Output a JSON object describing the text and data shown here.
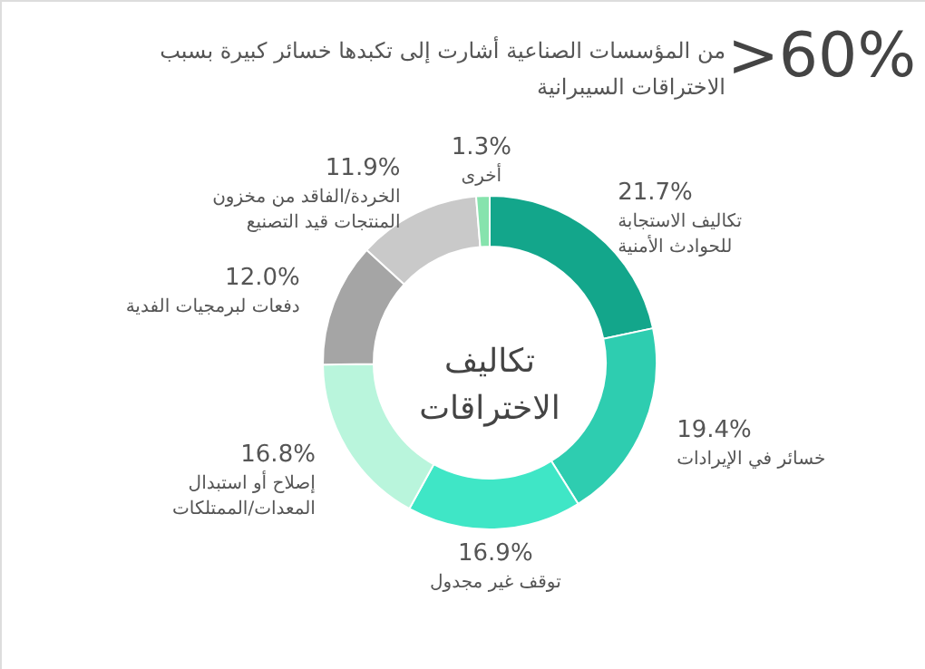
{
  "chart_data": {
    "type": "donut",
    "title": ">60%",
    "subtitle": "من المؤسسات الصناعية أشارت إلى تكبدها خسائر كبيرة بسبب الاختراقات السيبرانية",
    "categories": [
      "تكاليف الاستجابة للحوادث الأمنية",
      "خسائر في الإيرادات",
      "توقف غير مجدول",
      "إصلاح أو استبدال المعدات/الممتلكات",
      "دفعات لبرمجيات الفدية",
      "الخردة/الفاقد من مخزون المنتجات قيد التصنيع",
      "أخرى"
    ],
    "values": [
      21.7,
      19.4,
      16.9,
      16.8,
      12.0,
      11.9,
      1.3
    ],
    "value_labels": [
      "21.7%",
      "19.4%",
      "16.9%",
      "16.8%",
      "12.0%",
      "11.9%",
      "1.3%"
    ],
    "colors": [
      "#13a68b",
      "#2ecdb0",
      "#3fe6c6",
      "#b9f5dc",
      "#a5a5a5",
      "#c9c9c9",
      "#86e3ad"
    ],
    "annotations": [
      "تكاليف الاختراقات"
    ]
  }
}
